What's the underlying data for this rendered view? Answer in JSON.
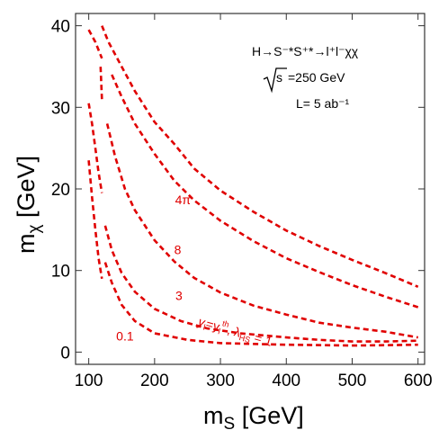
{
  "chart_data": {
    "type": "line",
    "title": "",
    "xlabel": {
      "main": "m",
      "sub": "S",
      "unit": "[GeV]"
    },
    "ylabel": {
      "main": "m",
      "sub": "χ",
      "unit": "[GeV]"
    },
    "xlim": [
      80,
      610
    ],
    "ylim": [
      -1.5,
      41.5
    ],
    "x_ticks": [
      100,
      200,
      300,
      400,
      500,
      600
    ],
    "y_ticks": [
      0,
      10,
      20,
      30,
      40
    ],
    "grid": false,
    "annotations": {
      "process": "H→S⁻*S⁺*→l⁺l⁻χχ",
      "energy": "=250 GeV",
      "energy_sqrt_symbol": "s",
      "luminosity": "L= 5 ab⁻¹"
    },
    "series": [
      {
        "label": "4π",
        "label_pos": [
          243,
          18.1
        ],
        "segments": [
          [
            [
              120,
              40
            ],
            [
              130,
              38
            ],
            [
              150,
              35
            ],
            [
              170,
              32
            ],
            [
              200,
              28.2
            ],
            [
              230,
              25.5
            ],
            [
              260,
              22.5
            ],
            [
              300,
              19.8
            ],
            [
              350,
              17.2
            ],
            [
              400,
              14.9
            ],
            [
              450,
              13
            ],
            [
              500,
              11.3
            ],
            [
              550,
              9.7
            ],
            [
              600,
              8
            ]
          ]
        ]
      },
      {
        "label": "8",
        "label_pos": [
          235,
          12
        ],
        "segments": [
          [
            [
              100,
              39.5
            ],
            [
              110,
              38
            ],
            [
              120,
              36
            ]
          ],
          [
            [
              120,
              31
            ],
            [
              118,
              35
            ]
          ],
          [
            [
              135,
              34
            ],
            [
              150,
              31.3
            ],
            [
              170,
              28
            ],
            [
              200,
              24.3
            ],
            [
              230,
              21
            ],
            [
              260,
              18.6
            ],
            [
              300,
              16.1
            ],
            [
              350,
              13.6
            ],
            [
              400,
              11.5
            ],
            [
              450,
              9.8
            ],
            [
              500,
              8.2
            ],
            [
              550,
              6.8
            ],
            [
              600,
              5.5
            ]
          ]
        ]
      },
      {
        "label": "3",
        "label_pos": [
          237,
          6.4
        ],
        "segments": [
          [
            [
              100,
              30.5
            ],
            [
              105,
              28
            ],
            [
              110,
              25
            ],
            [
              115,
              22
            ],
            [
              120,
              19.5
            ]
          ],
          [
            [
              128,
              28
            ],
            [
              140,
              24
            ],
            [
              155,
              20
            ],
            [
              170,
              17.4
            ],
            [
              200,
              13.7
            ],
            [
              230,
              11.1
            ],
            [
              260,
              9.1
            ],
            [
              300,
              7.3
            ],
            [
              350,
              5.7
            ],
            [
              400,
              4.6
            ],
            [
              450,
              3.6
            ],
            [
              500,
              3
            ],
            [
              550,
              2.5
            ],
            [
              600,
              1.8
            ]
          ]
        ]
      },
      {
        "label": "",
        "label_pos": null,
        "segments": [
          [
            [
              100,
              23.5
            ],
            [
              105,
              19
            ],
            [
              110,
              15
            ],
            [
              115,
              11.5
            ],
            [
              120,
              9
            ]
          ],
          [
            [
              125,
              15.5
            ],
            [
              135,
              12.5
            ],
            [
              150,
              9.7
            ],
            [
              170,
              7.4
            ],
            [
              200,
              5.3
            ],
            [
              240,
              3.8
            ],
            [
              280,
              2.9
            ],
            [
              330,
              2.3
            ],
            [
              400,
              1.8
            ],
            [
              450,
              1.5
            ],
            [
              500,
              1.3
            ],
            [
              550,
              1.3
            ],
            [
              600,
              1.4
            ]
          ]
        ]
      },
      {
        "label": "0.1",
        "label_pos": [
          155,
          1.4
        ],
        "segments": [
          [
            [
              125,
              11
            ],
            [
              135,
              8.5
            ],
            [
              150,
              5.8
            ],
            [
              170,
              3.8
            ],
            [
              200,
              2.3
            ],
            [
              250,
              1.5
            ],
            [
              300,
              1.1
            ],
            [
              400,
              0.9
            ],
            [
              500,
              0.8
            ],
            [
              550,
              0.85
            ],
            [
              600,
              0.9
            ]
          ]
        ]
      }
    ],
    "curve_annotation": {
      "y_text": "y",
      "y_sub": "l",
      "eq": "=y",
      "eq_sub": "l",
      "eq_sup": "th",
      "lambda": ", λ",
      "lambda_sub": "HS",
      "value": " = 1",
      "pos": [
        265,
        3.3
      ],
      "rotate": 16
    }
  }
}
